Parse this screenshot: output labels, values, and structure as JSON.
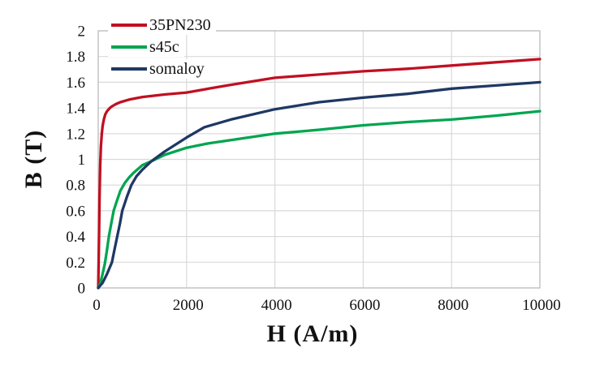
{
  "chart_data": {
    "type": "line",
    "title": "",
    "xlabel": "H (A/m)",
    "ylabel": "B (T)",
    "xlim": [
      0,
      10000
    ],
    "ylim": [
      0,
      2
    ],
    "x_ticks": [
      0,
      2000,
      4000,
      6000,
      8000,
      10000
    ],
    "x_tick_labels": [
      "0",
      "2000",
      "4000",
      "6000",
      "8000",
      "10000"
    ],
    "y_ticks": [
      0,
      0.2,
      0.4,
      0.6,
      0.8,
      1,
      1.2,
      1.4,
      1.6,
      1.8,
      2
    ],
    "y_tick_labels": [
      "0",
      "0.2",
      "0.4",
      "0.6",
      "0.8",
      "1",
      "1.2",
      "1.4",
      "1.6",
      "1.8",
      "2"
    ],
    "grid": true,
    "legend_position": "top-left",
    "gridline_color": "#d9d9d9",
    "plot_border_color": "#bfbfbf",
    "text_color": "#111111",
    "series": [
      {
        "name": "35PN230",
        "color": "#c01022",
        "points": [
          [
            0,
            0
          ],
          [
            10,
            0.2
          ],
          [
            20,
            0.45
          ],
          [
            30,
            0.7
          ],
          [
            45,
            0.95
          ],
          [
            60,
            1.1
          ],
          [
            80,
            1.2
          ],
          [
            100,
            1.26
          ],
          [
            130,
            1.315
          ],
          [
            160,
            1.35
          ],
          [
            200,
            1.375
          ],
          [
            250,
            1.395
          ],
          [
            300,
            1.41
          ],
          [
            400,
            1.43
          ],
          [
            500,
            1.445
          ],
          [
            700,
            1.465
          ],
          [
            1000,
            1.485
          ],
          [
            1500,
            1.505
          ],
          [
            2000,
            1.52
          ],
          [
            2500,
            1.55
          ],
          [
            3000,
            1.58
          ],
          [
            4000,
            1.635
          ],
          [
            5000,
            1.66
          ],
          [
            6000,
            1.685
          ],
          [
            7000,
            1.705
          ],
          [
            8000,
            1.73
          ],
          [
            9000,
            1.755
          ],
          [
            10000,
            1.78
          ]
        ]
      },
      {
        "name": "s45c",
        "color": "#00a550",
        "points": [
          [
            0,
            0
          ],
          [
            50,
            0.04
          ],
          [
            100,
            0.11
          ],
          [
            150,
            0.19
          ],
          [
            200,
            0.3
          ],
          [
            240,
            0.4
          ],
          [
            300,
            0.51
          ],
          [
            350,
            0.6
          ],
          [
            400,
            0.655
          ],
          [
            500,
            0.755
          ],
          [
            600,
            0.815
          ],
          [
            700,
            0.86
          ],
          [
            800,
            0.895
          ],
          [
            1000,
            0.955
          ],
          [
            1200,
            0.985
          ],
          [
            1500,
            1.035
          ],
          [
            2000,
            1.09
          ],
          [
            2500,
            1.125
          ],
          [
            3000,
            1.15
          ],
          [
            4000,
            1.2
          ],
          [
            5000,
            1.23
          ],
          [
            6000,
            1.265
          ],
          [
            7000,
            1.29
          ],
          [
            8000,
            1.31
          ],
          [
            9000,
            1.34
          ],
          [
            10000,
            1.375
          ]
        ]
      },
      {
        "name": "somaloy",
        "color": "#1f3864",
        "points": [
          [
            0,
            0
          ],
          [
            100,
            0.04
          ],
          [
            200,
            0.11
          ],
          [
            310,
            0.2
          ],
          [
            370,
            0.3
          ],
          [
            430,
            0.4
          ],
          [
            490,
            0.5
          ],
          [
            545,
            0.6
          ],
          [
            650,
            0.71
          ],
          [
            750,
            0.8
          ],
          [
            870,
            0.87
          ],
          [
            1000,
            0.92
          ],
          [
            1200,
            0.985
          ],
          [
            1500,
            1.06
          ],
          [
            2000,
            1.17
          ],
          [
            2400,
            1.25
          ],
          [
            3000,
            1.31
          ],
          [
            4000,
            1.39
          ],
          [
            5000,
            1.445
          ],
          [
            6000,
            1.48
          ],
          [
            7000,
            1.51
          ],
          [
            8000,
            1.55
          ],
          [
            9000,
            1.575
          ],
          [
            10000,
            1.6
          ]
        ]
      }
    ]
  }
}
